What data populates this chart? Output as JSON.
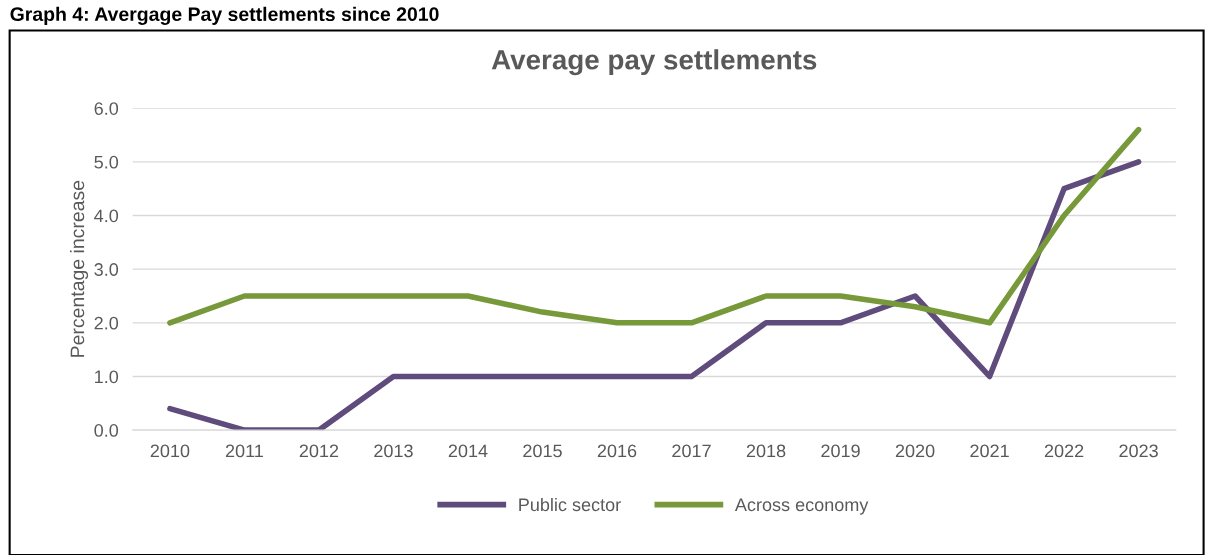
{
  "chart_data": {
    "type": "line",
    "title": "Average pay settlements",
    "ylabel": "Percentage increase",
    "annotations": [
      "Graph 4: Avergage Pay settlements since 2010"
    ],
    "categories": [
      "2010",
      "2011",
      "2012",
      "2013",
      "2014",
      "2015",
      "2016",
      "2017",
      "2018",
      "2019",
      "2020",
      "2021",
      "2022",
      "2023"
    ],
    "series": [
      {
        "name": "Public sector",
        "color": "#5f4b7c",
        "values": [
          0.4,
          0,
          0,
          1,
          1,
          1,
          1,
          1,
          2,
          2,
          2.5,
          1,
          4.5,
          5.0
        ]
      },
      {
        "name": "Across economy",
        "color": "#77993a",
        "values": [
          2.0,
          2.5,
          2.5,
          2.5,
          2.5,
          2.2,
          2.0,
          2.0,
          2.5,
          2.5,
          2.3,
          2.0,
          4.0,
          5.6
        ]
      }
    ],
    "ylim": [
      0,
      6
    ],
    "yticks": [
      {
        "value": 0,
        "label": "0.0"
      },
      {
        "value": 1,
        "label": "1.0"
      },
      {
        "value": 2,
        "label": "2.0"
      },
      {
        "value": 3,
        "label": "3.0"
      },
      {
        "value": 4,
        "label": "4.0"
      },
      {
        "value": 5,
        "label": "5.0"
      },
      {
        "value": 6,
        "label": "6.0"
      }
    ],
    "grid": "y",
    "legend": "bottom",
    "marker": "none",
    "line_style": "solid"
  }
}
